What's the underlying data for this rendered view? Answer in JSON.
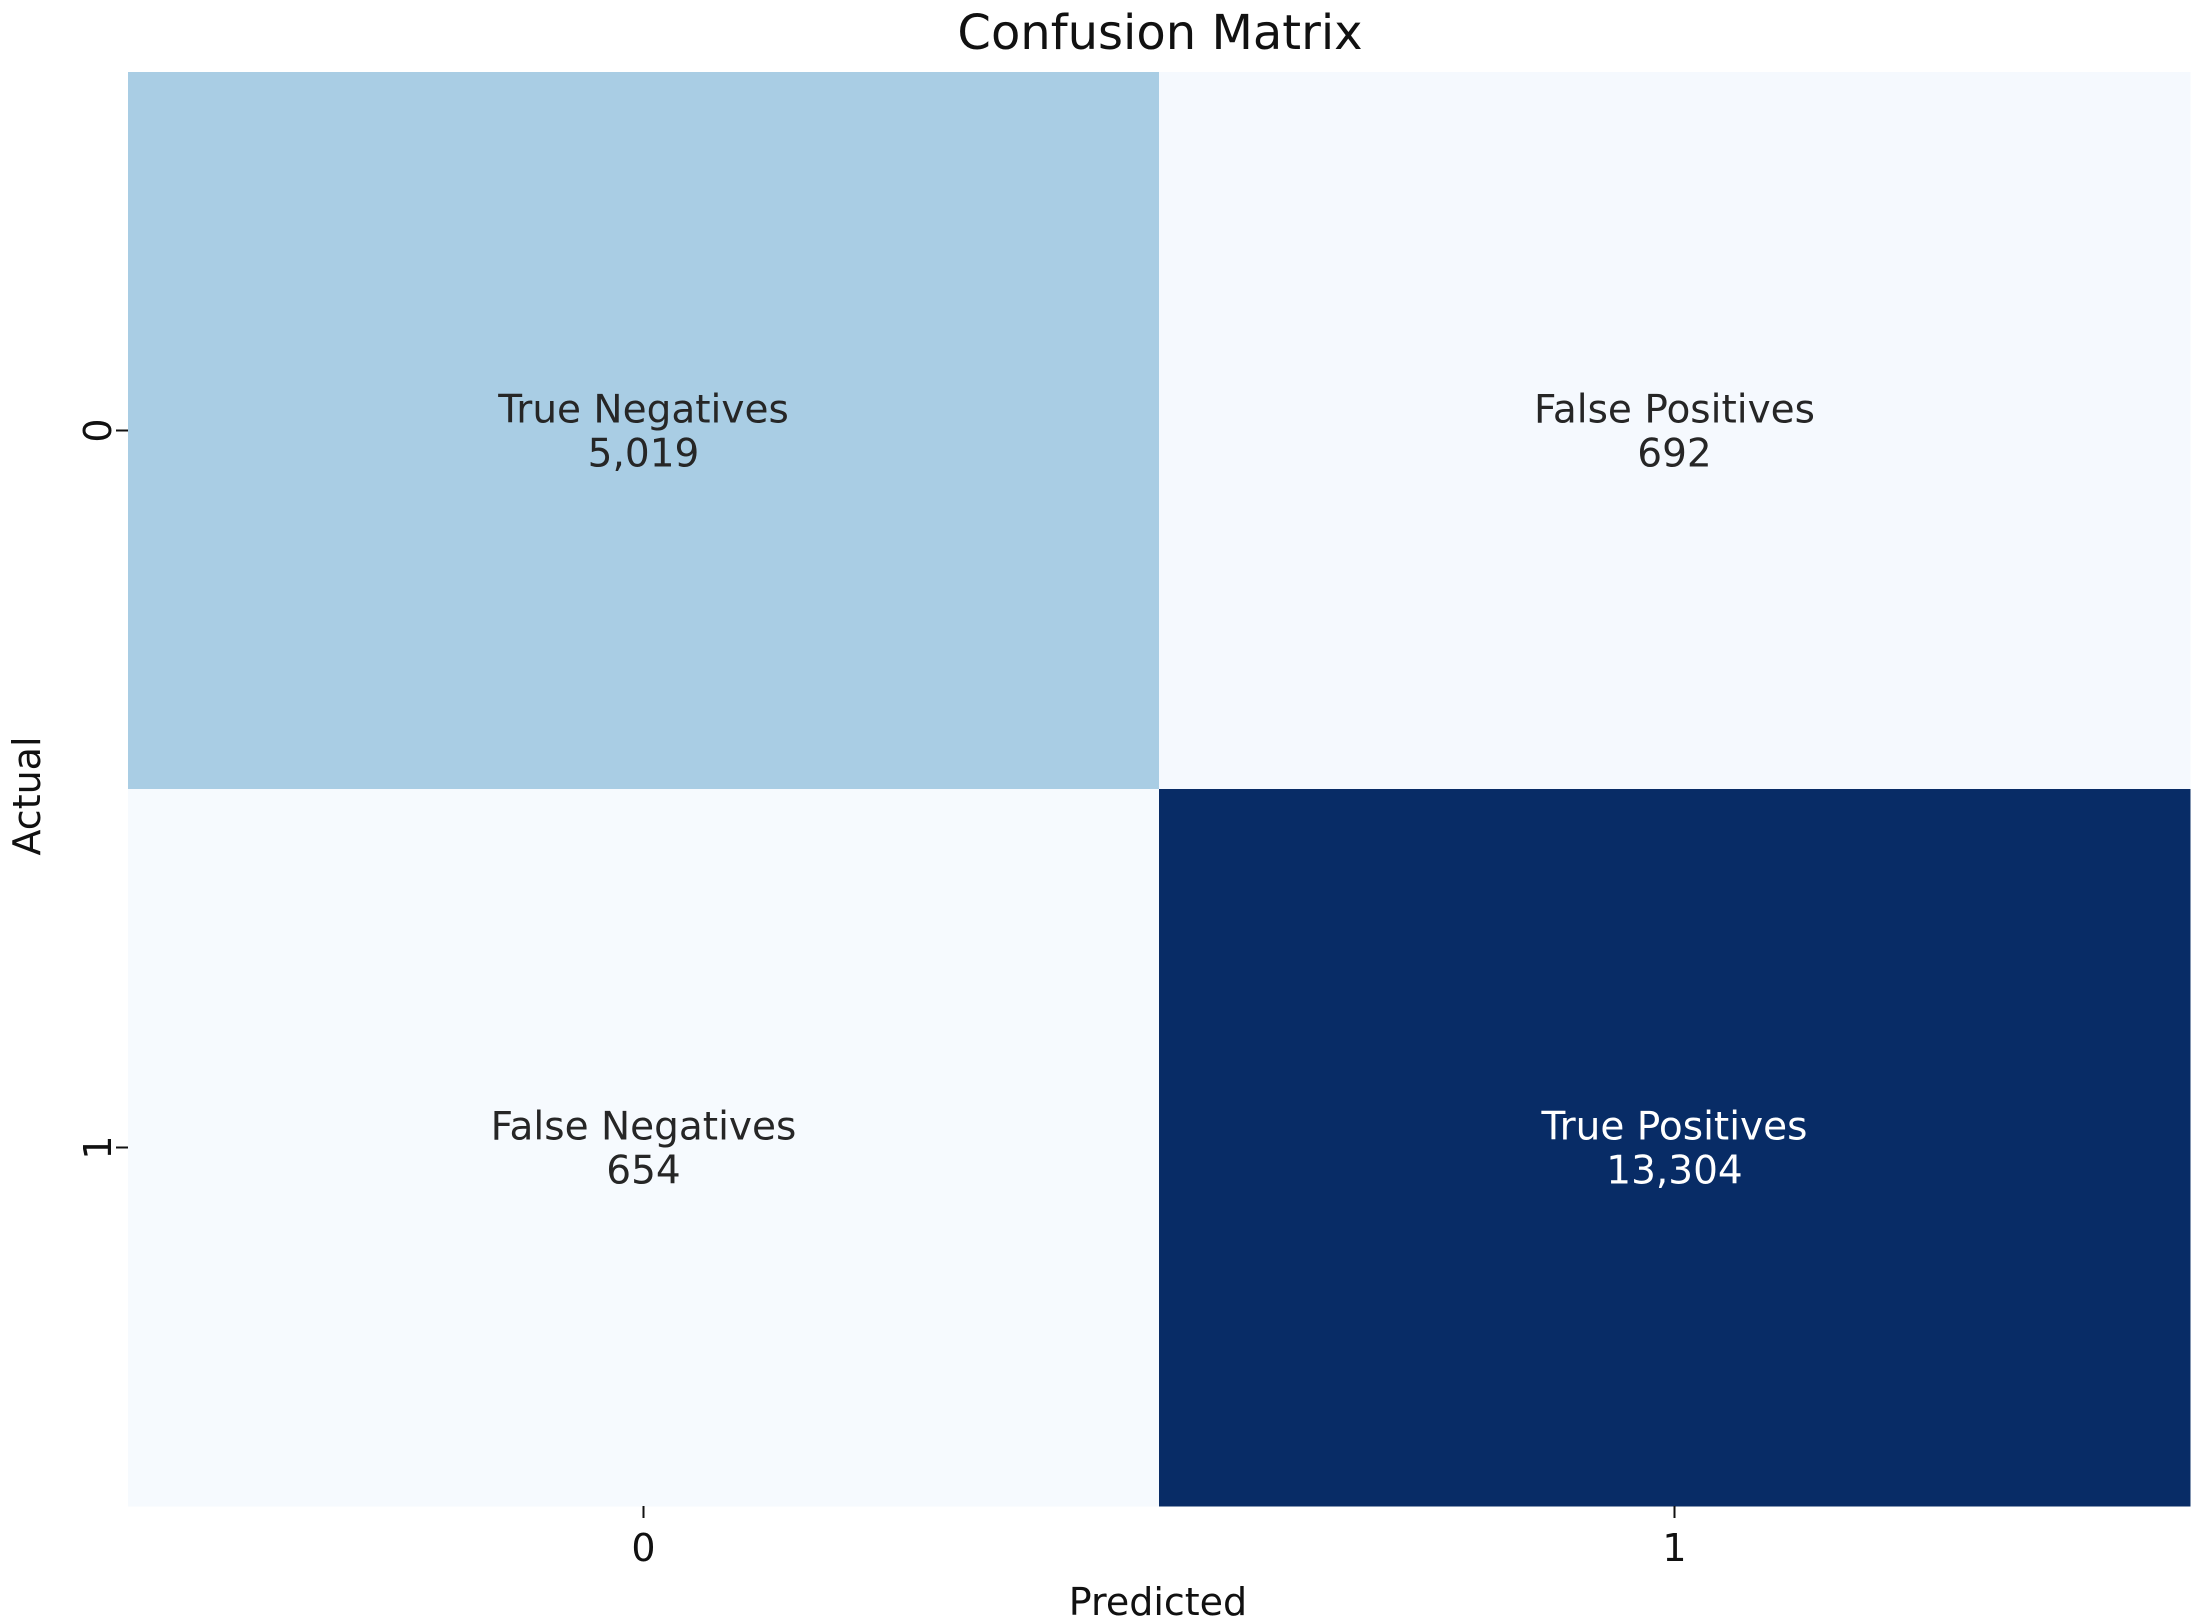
{
  "chart_data": {
    "type": "heatmap",
    "title": "Confusion Matrix",
    "xlabel": "Predicted",
    "ylabel": "Actual",
    "x_categories": [
      "0",
      "1"
    ],
    "y_categories": [
      "0",
      "1"
    ],
    "cells": [
      {
        "row": 0,
        "col": 0,
        "label": "True Negatives",
        "value": 5019,
        "value_text": "5,019",
        "color": "#a9cde4",
        "text_color": "#262626"
      },
      {
        "row": 0,
        "col": 1,
        "label": "False Positives",
        "value": 692,
        "value_text": "692",
        "color": "#f5f9fe",
        "text_color": "#262626"
      },
      {
        "row": 1,
        "col": 0,
        "label": "False Negatives",
        "value": 654,
        "value_text": "654",
        "color": "#f6fafe",
        "text_color": "#262626"
      },
      {
        "row": 1,
        "col": 1,
        "label": "True Positives",
        "value": 13304,
        "value_text": "13,304",
        "color": "#082c66",
        "text_color": "#ffffff"
      }
    ],
    "colormap": "Blues",
    "colorbar": false,
    "grid": false
  }
}
